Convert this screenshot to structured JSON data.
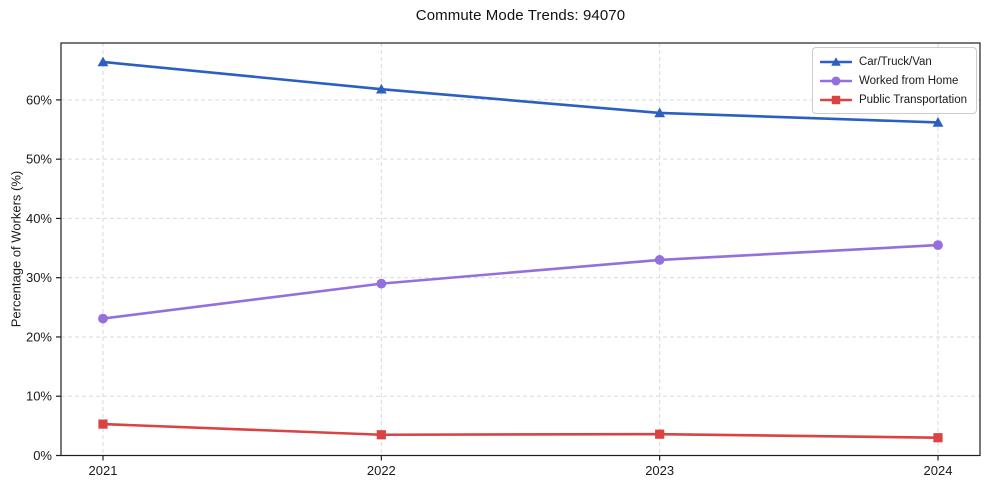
{
  "chart_data": {
    "type": "line",
    "title": "Commute Mode Trends: 94070",
    "xlabel": "",
    "ylabel": "Percentage of Workers (%)",
    "x": [
      "2021",
      "2022",
      "2023",
      "2024"
    ],
    "ylim": [
      0,
      69.6
    ],
    "yticks": [
      0,
      10,
      20,
      30,
      40,
      50,
      60
    ],
    "ytick_labels": [
      "0%",
      "10%",
      "20%",
      "30%",
      "40%",
      "50%",
      "60%"
    ],
    "grid": true,
    "grid_color": "#d9d9d9",
    "background_color": "#ffffff",
    "legend_position": "upper-right",
    "series": [
      {
        "name": "Car/Truck/Van",
        "marker": "triangle",
        "color": "#2b5fc2",
        "values": [
          66.4,
          61.8,
          57.8,
          56.2
        ]
      },
      {
        "name": "Worked from Home",
        "marker": "circle",
        "color": "#9370db",
        "values": [
          23.1,
          29.0,
          33.0,
          35.5
        ]
      },
      {
        "name": "Public Transportation",
        "marker": "square",
        "color": "#d94343",
        "values": [
          5.3,
          3.5,
          3.6,
          3.0
        ]
      }
    ]
  }
}
